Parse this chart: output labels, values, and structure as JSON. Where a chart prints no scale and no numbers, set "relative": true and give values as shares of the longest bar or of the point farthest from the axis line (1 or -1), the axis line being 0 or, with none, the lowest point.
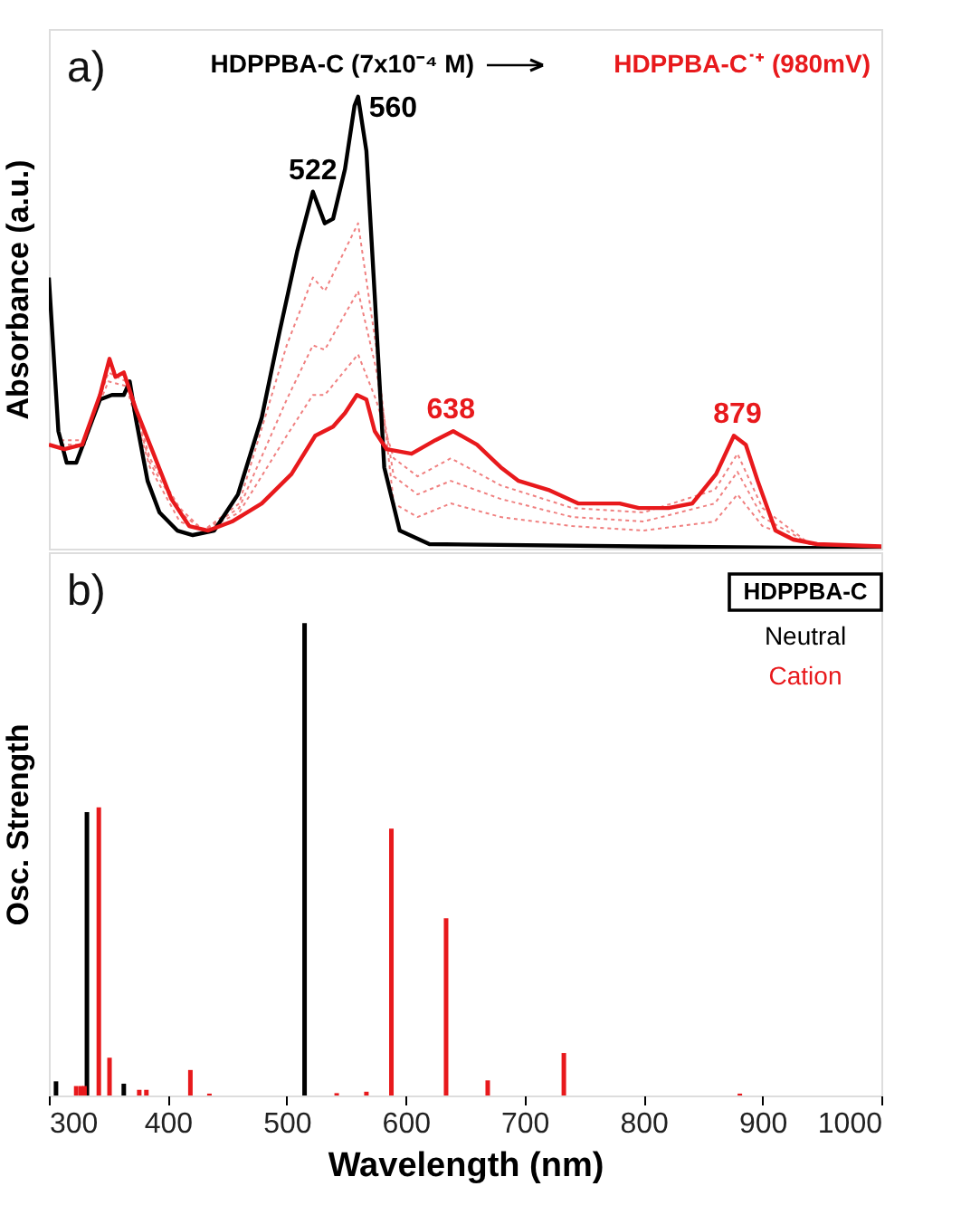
{
  "chart_data": [
    {
      "type": "line",
      "relative": true,
      "ylabel": "Absorbance (a.u.)",
      "xlim": [
        300,
        1000
      ],
      "xticks": [
        300,
        400,
        500,
        600,
        700,
        800,
        900,
        1000
      ],
      "tick_labels": false,
      "legend": "top",
      "annotations": [
        "a)",
        {
          "text": "522",
          "x": 522,
          "y": 0.79
        },
        {
          "text": "560",
          "x": 560,
          "y": 1.0
        },
        {
          "text": "638",
          "x": 638,
          "y": 0.26
        },
        {
          "text": "879",
          "x": 879,
          "y": 0.25
        }
      ],
      "series": [
        {
          "color": "#f08080",
          "line_style": "dotted",
          "x": [
            310,
            330,
            350,
            365,
            385,
            410,
            430,
            460,
            500,
            522,
            532,
            560,
            575,
            590,
            610,
            638,
            680,
            740,
            800,
            860,
            879,
            900,
            940,
            1000
          ],
          "values": [
            0.24,
            0.24,
            0.37,
            0.36,
            0.18,
            0.06,
            0.04,
            0.1,
            0.45,
            0.6,
            0.57,
            0.72,
            0.45,
            0.1,
            0.07,
            0.1,
            0.07,
            0.05,
            0.04,
            0.06,
            0.12,
            0.05,
            0.01,
            0
          ]
        },
        {
          "color": "#f08080",
          "line_style": "dotted",
          "x": [
            310,
            330,
            350,
            365,
            385,
            410,
            430,
            460,
            500,
            522,
            532,
            560,
            575,
            590,
            610,
            638,
            680,
            740,
            800,
            860,
            879,
            900,
            940,
            1000
          ],
          "values": [
            0.23,
            0.23,
            0.39,
            0.37,
            0.19,
            0.08,
            0.04,
            0.09,
            0.33,
            0.45,
            0.44,
            0.57,
            0.4,
            0.16,
            0.12,
            0.15,
            0.11,
            0.07,
            0.06,
            0.1,
            0.17,
            0.07,
            0.01,
            0
          ]
        },
        {
          "color": "#f08080",
          "line_style": "dotted",
          "x": [
            310,
            330,
            350,
            365,
            385,
            410,
            430,
            460,
            500,
            522,
            532,
            560,
            575,
            590,
            610,
            638,
            680,
            740,
            800,
            860,
            879,
            900,
            940,
            1000
          ],
          "values": [
            0.23,
            0.23,
            0.4,
            0.38,
            0.2,
            0.09,
            0.04,
            0.08,
            0.25,
            0.34,
            0.34,
            0.43,
            0.33,
            0.2,
            0.16,
            0.2,
            0.14,
            0.09,
            0.08,
            0.13,
            0.21,
            0.09,
            0.01,
            0
          ]
        },
        {
          "name": "HDPPBA-C (7x10⁻⁴ M)",
          "color": "#000000",
          "line_style": "solid",
          "x": [
            300,
            308,
            315,
            323,
            333,
            343,
            353,
            363,
            368,
            373,
            383,
            393,
            408,
            421,
            439,
            459,
            479,
            494,
            509,
            522,
            532,
            539,
            549,
            557,
            560,
            567,
            574,
            582,
            595,
            620,
            796,
            1000
          ],
          "values": [
            0.6,
            0.26,
            0.19,
            0.19,
            0.26,
            0.33,
            0.34,
            0.34,
            0.37,
            0.29,
            0.15,
            0.08,
            0.04,
            0.03,
            0.04,
            0.12,
            0.29,
            0.48,
            0.66,
            0.79,
            0.72,
            0.73,
            0.84,
            0.98,
            1.0,
            0.88,
            0.56,
            0.18,
            0.04,
            0.01,
            0.005,
            0
          ]
        },
        {
          "name": "HDPPBA-C˙⁺ (980mV)",
          "color": "#e8191c",
          "line_style": "solid",
          "x": [
            300,
            313,
            328,
            343,
            351,
            356,
            363,
            373,
            388,
            403,
            418,
            434,
            454,
            479,
            504,
            524,
            539,
            549,
            559,
            567,
            574,
            584,
            605,
            625,
            640,
            660,
            680,
            695,
            720,
            745,
            770,
            780,
            796,
            821,
            841,
            861,
            876,
            886,
            896,
            911,
            926,
            946,
            1000
          ],
          "values": [
            0.23,
            0.22,
            0.23,
            0.34,
            0.42,
            0.38,
            0.39,
            0.31,
            0.21,
            0.11,
            0.05,
            0.04,
            0.06,
            0.1,
            0.165,
            0.25,
            0.27,
            0.3,
            0.34,
            0.33,
            0.26,
            0.22,
            0.21,
            0.24,
            0.26,
            0.23,
            0.18,
            0.15,
            0.13,
            0.1,
            0.1,
            0.1,
            0.09,
            0.09,
            0.1,
            0.165,
            0.25,
            0.23,
            0.15,
            0.04,
            0.02,
            0.01,
            0.005
          ]
        }
      ]
    },
    {
      "type": "bar",
      "relative": true,
      "ylabel": "Osc. Strength",
      "xlabel": "Wavelength (nm)",
      "xlim": [
        300,
        1000
      ],
      "xticks": [
        300,
        400,
        500,
        600,
        700,
        800,
        900,
        {
          "value": 1000,
          "label": "1000"
        }
      ],
      "tick_labels": "x",
      "legend": "top right",
      "legend_title": "HDPPBA-C",
      "annotations": [
        "b)"
      ],
      "series": [
        {
          "name": "Neutral",
          "color": "#000000",
          "x": [
            306,
            332,
            363,
            515
          ],
          "values": [
            0.03,
            0.6,
            0.025,
            1.0
          ]
        },
        {
          "name": "Cation",
          "color": "#e8191c",
          "x": [
            323,
            327,
            330,
            342,
            351,
            376,
            382,
            419,
            435,
            542,
            567,
            588,
            634,
            669,
            733,
            881
          ],
          "values": [
            0.02,
            0.02,
            0.02,
            0.61,
            0.08,
            0.012,
            0.012,
            0.054,
            0.004,
            0.005,
            0.008,
            0.565,
            0.375,
            0.032,
            0.09,
            0.004
          ]
        }
      ]
    }
  ]
}
